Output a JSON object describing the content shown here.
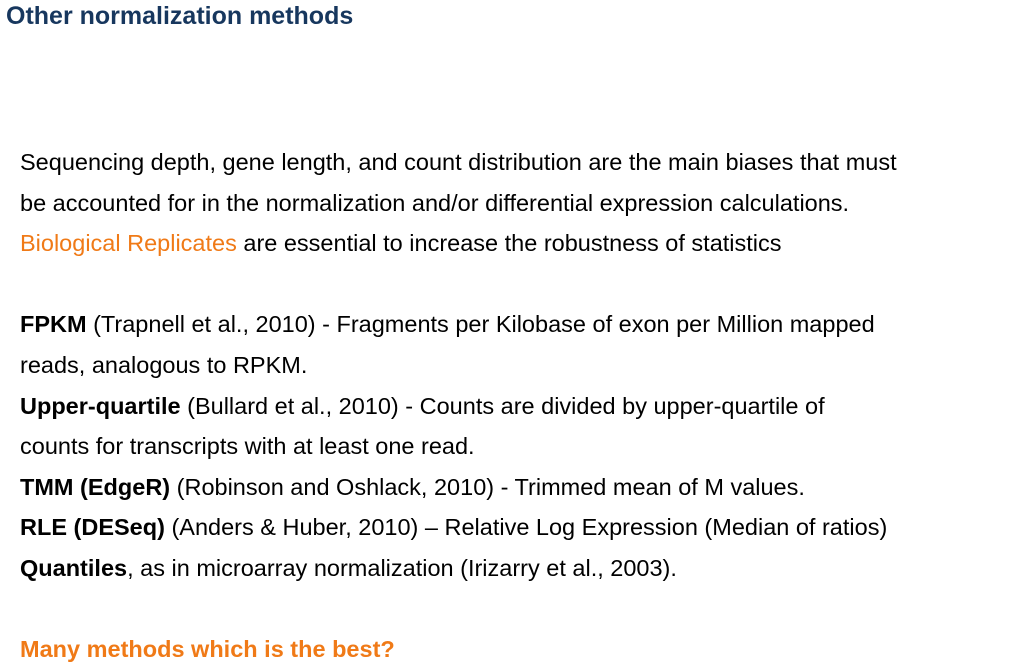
{
  "slide": {
    "title": "Other normalization methods"
  },
  "intro": {
    "line1": "Sequencing depth, gene length, and count distribution are the main biases that must",
    "line2": "be accounted for in the normalization and/or differential expression calculations.",
    "highlight": "Biological Replicates",
    "line3_rest": " are essential to increase the robustness of statistics"
  },
  "methods": {
    "fpkm": {
      "name": "FPKM",
      "desc_line1": " (Trapnell et al., 2010) - Fragments per Kilobase of exon per Million mapped",
      "desc_line2": "reads, analogous to RPKM."
    },
    "upper_quartile": {
      "name": "Upper-quartile",
      "desc_line1": " (Bullard et al., 2010) - Counts are divided by upper-quartile of",
      "desc_line2": "counts for transcripts with at least one read."
    },
    "tmm": {
      "name": "TMM (EdgeR)",
      "desc": " (Robinson and Oshlack, 2010) - Trimmed mean of M values."
    },
    "rle": {
      "name": "RLE (DESeq)",
      "desc": " (Anders & Huber, 2010) – Relative Log Expression (Median of ratios)"
    },
    "quantiles": {
      "name": "Quantiles",
      "desc": ", as in microarray normalization (Irizarry et al., 2003)."
    }
  },
  "closing": {
    "question": "Many methods which is the best?"
  },
  "colors": {
    "title": "#17375e",
    "accent": "#f07a17",
    "text": "#000000"
  }
}
